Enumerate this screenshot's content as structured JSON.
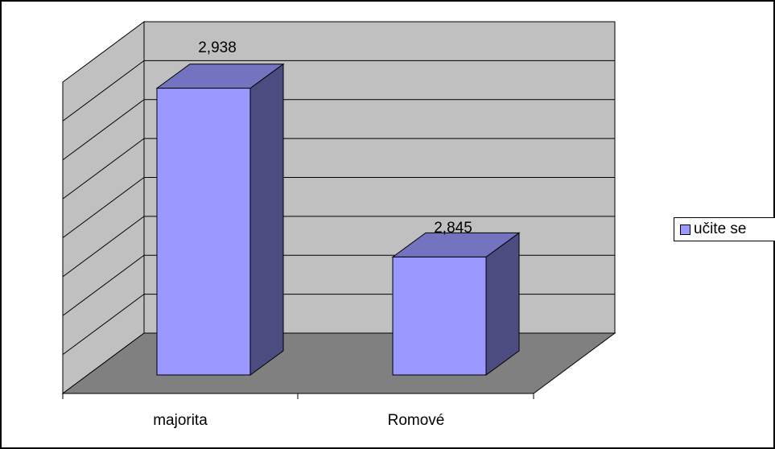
{
  "chart_data": {
    "type": "bar",
    "categories": [
      "majorita",
      "Romové"
    ],
    "series": [
      {
        "name": "učite se",
        "values": [
          2.938,
          2.845
        ],
        "labels": [
          "2,938",
          "2,845"
        ]
      }
    ],
    "ylim": [
      2.78,
      2.96
    ],
    "y_gridlines": 8,
    "grid": true,
    "legend_position": "right",
    "colors": {
      "bar_front": "#9999ff",
      "bar_top": "#7373bf",
      "bar_side": "#4c4c80",
      "back_wall": "#c0c0c0",
      "side_wall": "#c0c0c0",
      "floor": "#808080"
    }
  }
}
